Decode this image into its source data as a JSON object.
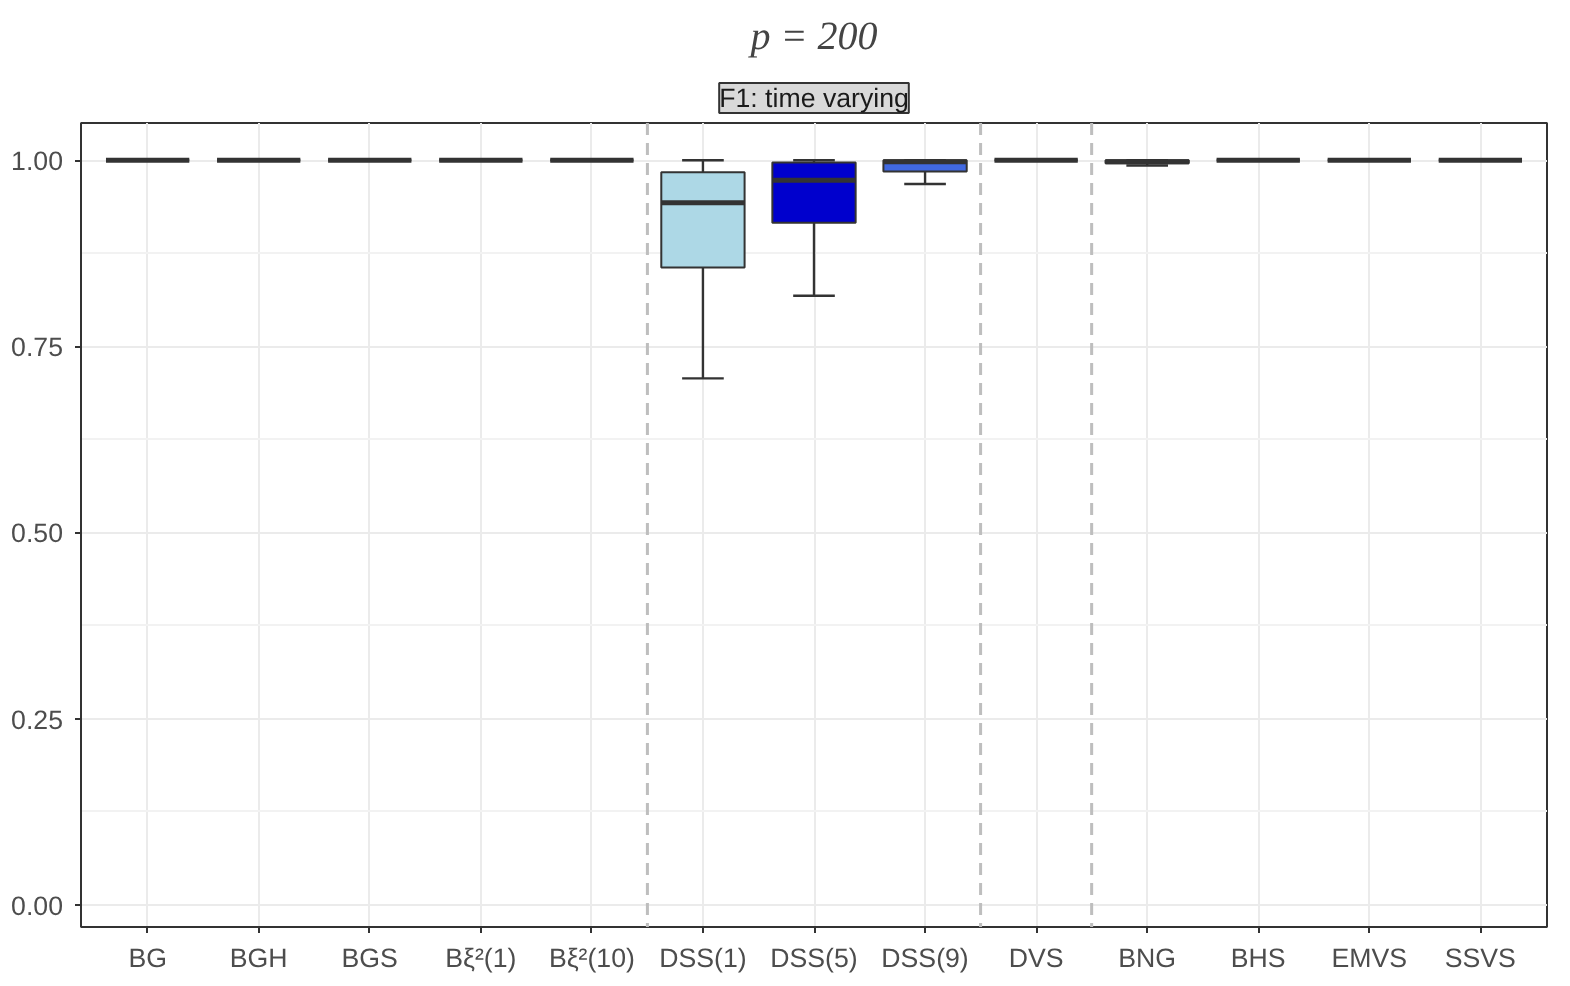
{
  "chart_data": {
    "type": "box",
    "title": "p = 200",
    "subtitle": "F1: time varying",
    "categories": [
      "BG",
      "BGH",
      "BGS",
      "Bξ²(1)",
      "Bξ²(10)",
      "DSS(1)",
      "DSS(5)",
      "DSS(9)",
      "DVS",
      "BNG",
      "BHS",
      "EMVS",
      "SSVS"
    ],
    "colors": [
      "#333333",
      "#333333",
      "#333333",
      "#333333",
      "#333333",
      "#add8e6",
      "#0000cd",
      "#4169e1",
      "#333333",
      "#333333",
      "#333333",
      "#333333",
      "#333333"
    ],
    "boxes": [
      {
        "low": 1.0,
        "q1": 1.0,
        "median": 1.0,
        "q3": 1.0,
        "high": 1.0
      },
      {
        "low": 1.0,
        "q1": 1.0,
        "median": 1.0,
        "q3": 1.0,
        "high": 1.0
      },
      {
        "low": 1.0,
        "q1": 1.0,
        "median": 1.0,
        "q3": 1.0,
        "high": 1.0
      },
      {
        "low": 1.0,
        "q1": 1.0,
        "median": 1.0,
        "q3": 1.0,
        "high": 1.0
      },
      {
        "low": 1.0,
        "q1": 1.0,
        "median": 1.0,
        "q3": 1.0,
        "high": 1.0
      },
      {
        "low": 0.707,
        "q1": 0.856,
        "median": 0.943,
        "q3": 0.984,
        "high": 1.0
      },
      {
        "low": 0.818,
        "q1": 0.916,
        "median": 0.973,
        "q3": 0.997,
        "high": 1.0
      },
      {
        "low": 0.968,
        "q1": 0.985,
        "median": 0.998,
        "q3": 1.0,
        "high": 1.0
      },
      {
        "low": 1.0,
        "q1": 1.0,
        "median": 1.0,
        "q3": 1.0,
        "high": 1.0
      },
      {
        "low": 0.993,
        "q1": 0.996,
        "median": 0.998,
        "q3": 1.0,
        "high": 1.0
      },
      {
        "low": 1.0,
        "q1": 1.0,
        "median": 1.0,
        "q3": 1.0,
        "high": 1.0
      },
      {
        "low": 1.0,
        "q1": 1.0,
        "median": 1.0,
        "q3": 1.0,
        "high": 1.0
      },
      {
        "low": 1.0,
        "q1": 1.0,
        "median": 1.0,
        "q3": 1.0,
        "high": 1.0
      }
    ],
    "ylim": [
      -0.03,
      1.05
    ],
    "yticks": [
      {
        "value": 0,
        "label": "0.00"
      },
      {
        "value": 0.25,
        "label": "0.25"
      },
      {
        "value": 0.5,
        "label": "0.50"
      },
      {
        "value": 0.75,
        "label": "0.75"
      },
      {
        "value": 1,
        "label": "1.00"
      }
    ],
    "grid": true
  }
}
